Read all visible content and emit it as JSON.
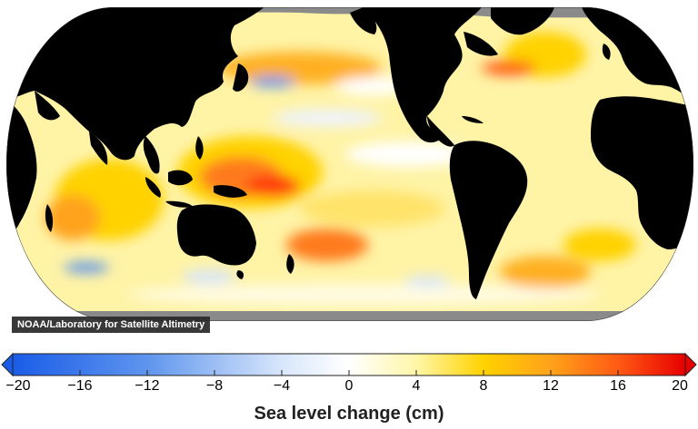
{
  "map": {
    "credit": "NOAA/Laboratory for Satellite Altimetry"
  },
  "colorbar": {
    "label": "Sea level change (cm)",
    "min": -20,
    "max": 20,
    "ticks": [
      "−20",
      "−16",
      "−12",
      "−8",
      "−4",
      "0",
      "4",
      "8",
      "12",
      "16",
      "20"
    ],
    "tick_values": [
      -20,
      -16,
      -12,
      -8,
      -4,
      0,
      4,
      8,
      12,
      16,
      20
    ],
    "has_extension_arrows": true,
    "color_stops": [
      {
        "value": -20,
        "color": "#1a5ce8"
      },
      {
        "value": -12,
        "color": "#5f95ee"
      },
      {
        "value": -4,
        "color": "#d8e6fb"
      },
      {
        "value": 0,
        "color": "#ffffff"
      },
      {
        "value": 4,
        "color": "#fff6a8"
      },
      {
        "value": 8,
        "color": "#ffd200"
      },
      {
        "value": 12,
        "color": "#ffa21a"
      },
      {
        "value": 16,
        "color": "#ff5a14"
      },
      {
        "value": 20,
        "color": "#e80000"
      }
    ]
  },
  "colors": {
    "land": "#000000",
    "ice": "#8a8a8a",
    "ocean_base": "#fff3a6"
  }
}
